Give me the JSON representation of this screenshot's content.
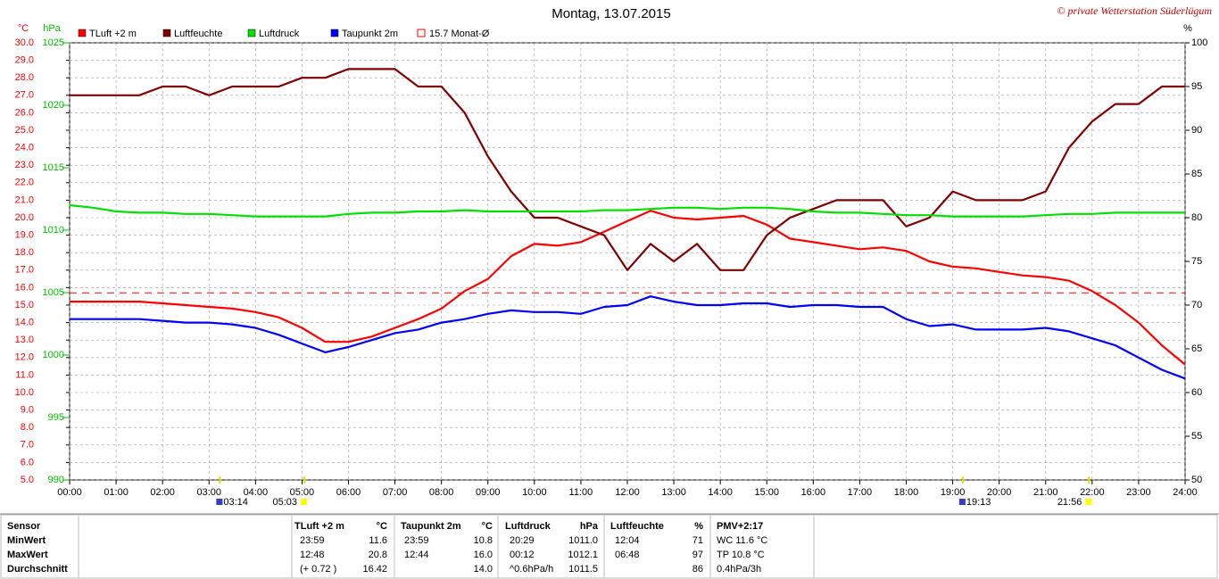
{
  "chart_data": {
    "type": "line",
    "title": "Montag, 13.07.2015",
    "copyright": "© private Wetterstation Süderlügum",
    "y_label": "°C",
    "y2_label": "hPa",
    "y3_label": "%",
    "x": [
      0,
      0.5,
      1,
      1.5,
      2,
      2.5,
      3,
      3.5,
      4,
      4.5,
      5,
      5.5,
      6,
      6.5,
      7,
      7.5,
      8,
      8.5,
      9,
      9.5,
      10,
      10.5,
      11,
      11.5,
      12,
      12.5,
      13,
      13.5,
      14,
      14.5,
      15,
      15.5,
      16,
      16.5,
      17,
      17.5,
      18,
      18.5,
      19,
      19.5,
      20,
      20.5,
      21,
      21.5,
      22,
      22.5,
      23,
      23.5,
      24
    ],
    "xlim": [
      0,
      24
    ],
    "xticks": [
      {
        "value": 0,
        "label": "00:00"
      },
      {
        "value": 1,
        "label": "01:00"
      },
      {
        "value": 2,
        "label": "02:00"
      },
      {
        "value": 3,
        "label": "03:00"
      },
      {
        "value": 4,
        "label": "04:00"
      },
      {
        "value": 5,
        "label": "05:00"
      },
      {
        "value": 6,
        "label": "06:00"
      },
      {
        "value": 7,
        "label": "07:00"
      },
      {
        "value": 8,
        "label": "08:00"
      },
      {
        "value": 9,
        "label": "09:00"
      },
      {
        "value": 10,
        "label": "10:00"
      },
      {
        "value": 11,
        "label": "11:00"
      },
      {
        "value": 12,
        "label": "12:00"
      },
      {
        "value": 13,
        "label": "13:00"
      },
      {
        "value": 14,
        "label": "14:00"
      },
      {
        "value": 15,
        "label": "15:00"
      },
      {
        "value": 16,
        "label": "16:00"
      },
      {
        "value": 17,
        "label": "17:00"
      },
      {
        "value": 18,
        "label": "18:00"
      },
      {
        "value": 19,
        "label": "19:00"
      },
      {
        "value": 20,
        "label": "20:00"
      },
      {
        "value": 21,
        "label": "21:00"
      },
      {
        "value": 22,
        "label": "22:00"
      },
      {
        "value": 23,
        "label": "23:00"
      },
      {
        "value": 24,
        "label": "24:00"
      }
    ],
    "ylim": [
      5,
      30
    ],
    "yticks": [
      {
        "value": 5,
        "label": "5.0"
      },
      {
        "value": 6,
        "label": "6.0"
      },
      {
        "value": 7,
        "label": "7.0"
      },
      {
        "value": 8,
        "label": "8.0"
      },
      {
        "value": 9,
        "label": "9.0"
      },
      {
        "value": 10,
        "label": "10.0"
      },
      {
        "value": 11,
        "label": "11.0"
      },
      {
        "value": 12,
        "label": "12.0"
      },
      {
        "value": 13,
        "label": "13.0"
      },
      {
        "value": 14,
        "label": "14.0"
      },
      {
        "value": 15,
        "label": "15.0"
      },
      {
        "value": 16,
        "label": "16.0"
      },
      {
        "value": 17,
        "label": "17.0"
      },
      {
        "value": 18,
        "label": "18.0"
      },
      {
        "value": 19,
        "label": "19.0"
      },
      {
        "value": 20,
        "label": "20.0"
      },
      {
        "value": 21,
        "label": "21.0"
      },
      {
        "value": 22,
        "label": "22.0"
      },
      {
        "value": 23,
        "label": "23.0"
      },
      {
        "value": 24,
        "label": "24.0"
      },
      {
        "value": 25,
        "label": "25.0"
      },
      {
        "value": 26,
        "label": "26.0"
      },
      {
        "value": 27,
        "label": "27.0"
      },
      {
        "value": 28,
        "label": "28.0"
      },
      {
        "value": 29,
        "label": "29.0"
      },
      {
        "value": 30,
        "label": "30.0"
      }
    ],
    "y2lim": [
      990,
      1025
    ],
    "y2ticks": [
      990,
      995,
      1000,
      1005,
      1010,
      1015,
      1020,
      1025
    ],
    "y3lim": [
      50,
      100
    ],
    "y3ticks": [
      50,
      55,
      60,
      65,
      70,
      75,
      80,
      85,
      90,
      95,
      100
    ],
    "grid": true,
    "series": [
      {
        "name": "TLuft +2 m",
        "color": "#ff0000",
        "values": [
          15.2,
          15.2,
          15.2,
          15.2,
          15.1,
          15.0,
          14.9,
          14.8,
          14.6,
          14.3,
          13.7,
          12.9,
          12.9,
          13.2,
          13.7,
          14.2,
          14.8,
          15.8,
          16.5,
          17.8,
          18.5,
          18.4,
          18.6,
          19.2,
          19.8,
          20.4,
          20.0,
          19.9,
          20.0,
          20.1,
          19.6,
          18.8,
          18.6,
          18.4,
          18.2,
          18.3,
          18.1,
          17.5,
          17.2,
          17.1,
          16.9,
          16.7,
          16.6,
          16.4,
          15.8,
          15.0,
          14.0,
          12.7,
          11.6
        ]
      },
      {
        "name": "Luftfeuchte",
        "color": "#800000",
        "axis": "y3",
        "values": [
          94,
          94,
          94,
          94,
          95,
          95,
          94,
          95,
          95,
          95,
          96,
          96,
          97,
          97,
          97,
          95,
          95,
          92,
          87,
          83,
          80,
          80,
          79,
          78,
          74,
          77,
          75,
          77,
          74,
          74,
          78,
          80,
          81,
          82,
          82,
          82,
          79,
          80,
          83,
          82,
          82,
          82,
          83,
          88,
          91,
          93,
          93,
          95,
          95
        ]
      },
      {
        "name": "Luftdruck",
        "color": "#00e000",
        "axis": "y2",
        "values": [
          1012.0,
          1011.8,
          1011.5,
          1011.4,
          1011.4,
          1011.3,
          1011.3,
          1011.2,
          1011.1,
          1011.1,
          1011.1,
          1011.1,
          1011.3,
          1011.4,
          1011.4,
          1011.5,
          1011.5,
          1011.6,
          1011.5,
          1011.5,
          1011.5,
          1011.5,
          1011.5,
          1011.6,
          1011.6,
          1011.7,
          1011.8,
          1011.8,
          1011.7,
          1011.8,
          1011.8,
          1011.7,
          1011.5,
          1011.4,
          1011.4,
          1011.3,
          1011.2,
          1011.2,
          1011.1,
          1011.1,
          1011.1,
          1011.1,
          1011.2,
          1011.3,
          1011.3,
          1011.4,
          1011.4,
          1011.4,
          1011.4
        ]
      },
      {
        "name": "Taupunkt 2m",
        "color": "#0000ff",
        "values": [
          14.2,
          14.2,
          14.2,
          14.2,
          14.1,
          14.0,
          14.0,
          13.9,
          13.7,
          13.3,
          12.8,
          12.3,
          12.6,
          13.0,
          13.4,
          13.6,
          14.0,
          14.2,
          14.5,
          14.7,
          14.6,
          14.6,
          14.5,
          14.9,
          15.0,
          15.5,
          15.2,
          15.0,
          15.0,
          15.1,
          15.1,
          14.9,
          15.0,
          15.0,
          14.9,
          14.9,
          14.2,
          13.8,
          13.9,
          13.6,
          13.6,
          13.6,
          13.7,
          13.5,
          13.1,
          12.7,
          12.0,
          11.3,
          10.8
        ]
      }
    ],
    "reference": {
      "value": 15.7,
      "label": "15.7 Monat-Ø",
      "color": "#ff0000"
    },
    "annotations": [
      {
        "x": 3.233,
        "label": "03:14"
      },
      {
        "x": 5.05,
        "label": "05:03"
      },
      {
        "x": 19.217,
        "label": "19:13"
      },
      {
        "x": 21.933,
        "label": "21:56"
      }
    ]
  },
  "table": {
    "header": [
      "Sensor",
      "TLuft +2 m",
      "°C",
      "Taupunkt 2m",
      "°C",
      "Luftdruck",
      "hPa",
      "Luftfeuchte",
      "%",
      "PMV+2:17"
    ],
    "rows": [
      [
        "MinWert",
        "23:59",
        "11.6",
        "23:59",
        "10.8",
        "20:29",
        "1011.0",
        "12:04",
        "71",
        "WC 11.6 °C"
      ],
      [
        "MaxWert",
        "12:48",
        "20.8",
        "12:44",
        "16.0",
        "00:12",
        "1012.1",
        "06:48",
        "97",
        "TP 10.8 °C"
      ],
      [
        "Durchschnitt",
        "(+ 0.72 )",
        "16.42",
        null,
        "14.0",
        "^0.6hPa/h",
        "1011.5",
        null,
        "86",
        "0.4hPa/3h"
      ]
    ]
  }
}
